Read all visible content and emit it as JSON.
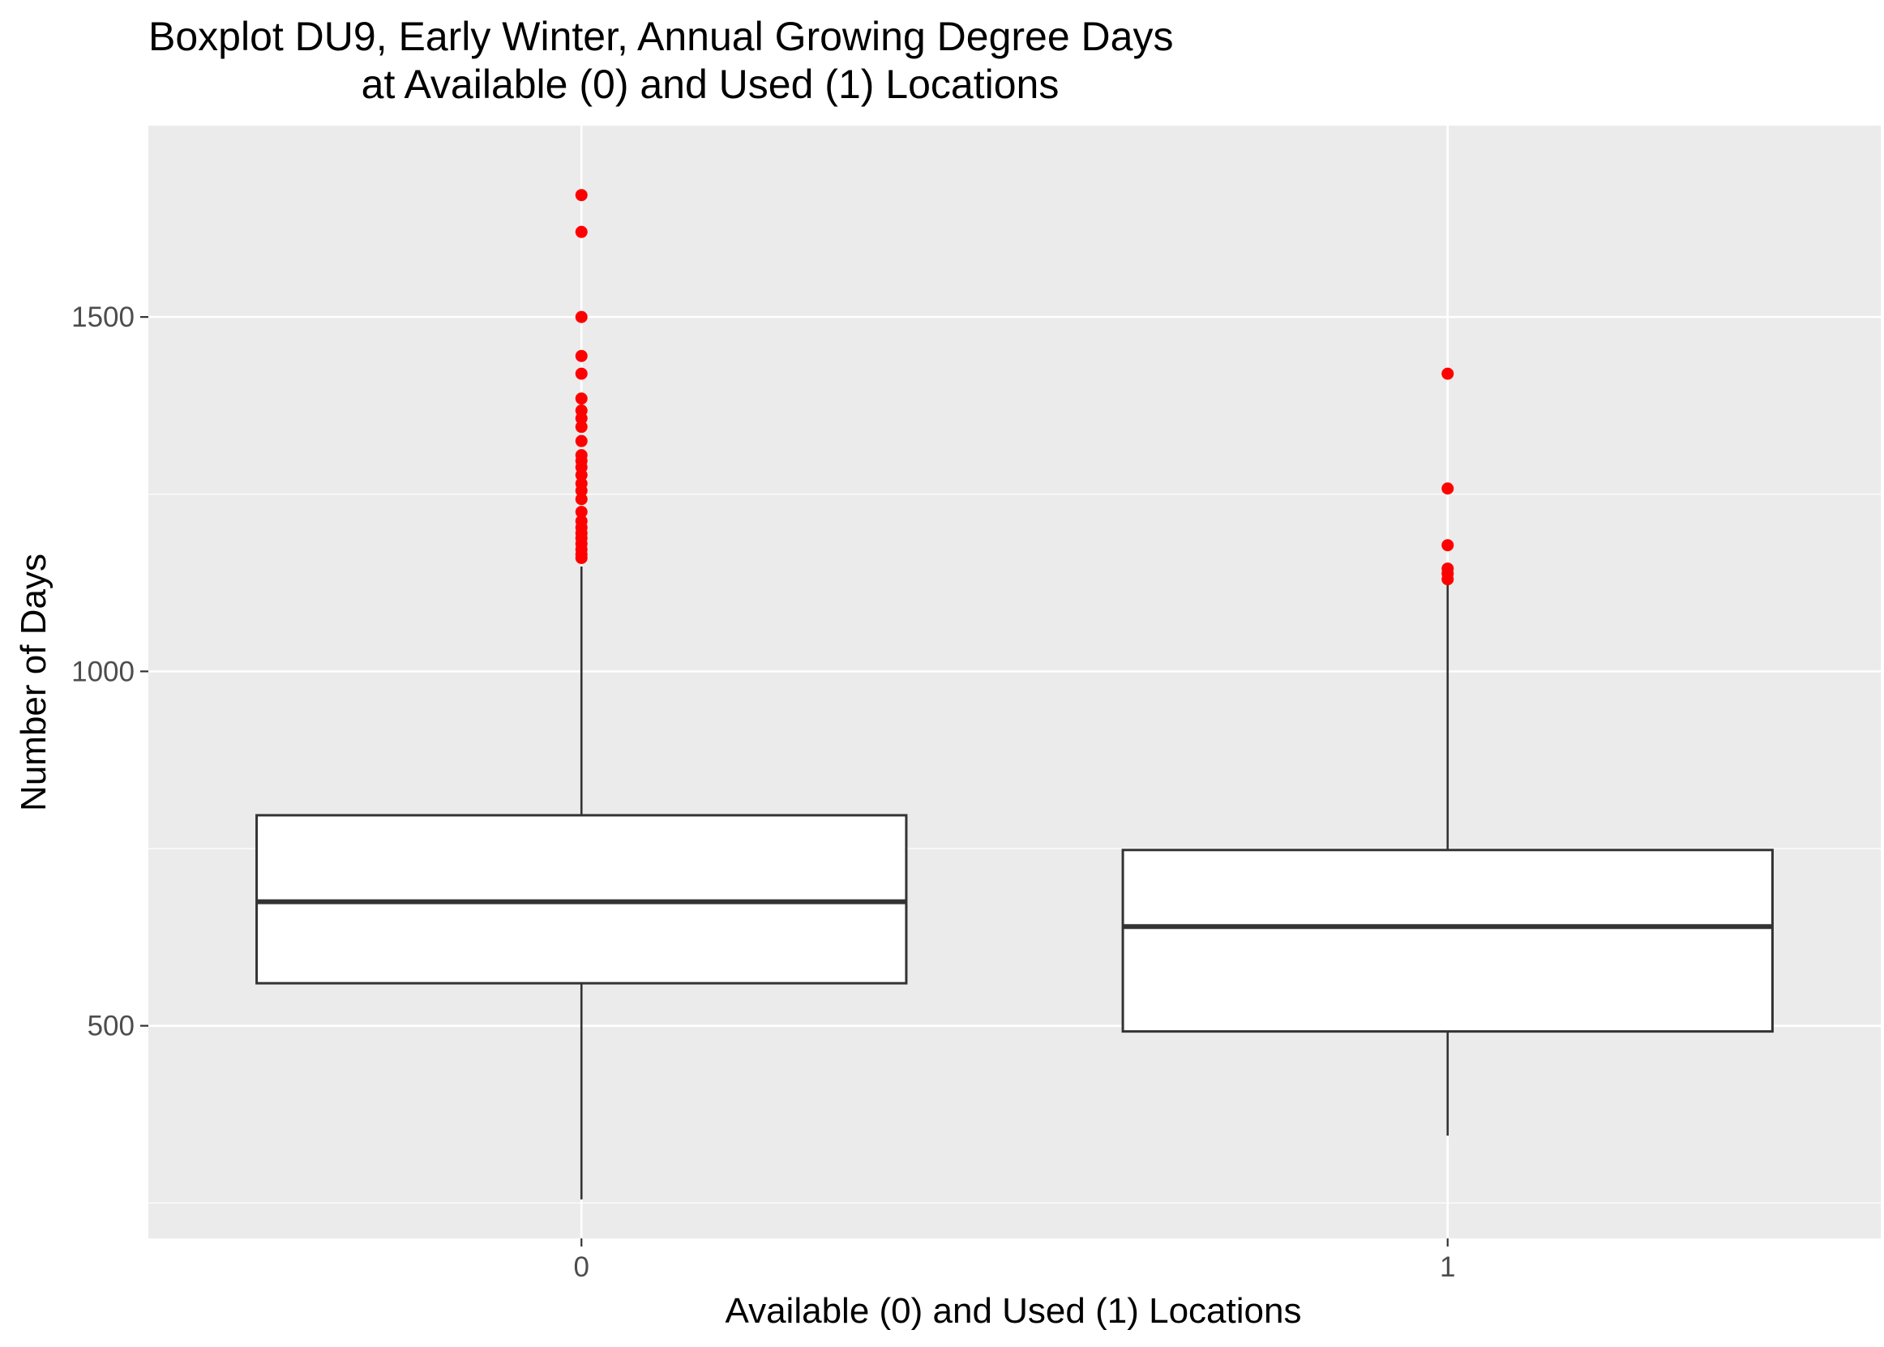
{
  "chart_data": {
    "type": "boxplot",
    "title": "Boxplot DU9, Early Winter, Annual Growing Degree Days",
    "subtitle": "at Available (0) and Used (1) Locations",
    "xlabel": "Available (0) and Used (1) Locations",
    "ylabel": "Number of Days",
    "categories": [
      "0",
      "1"
    ],
    "y_ticks": [
      500,
      1000,
      1500
    ],
    "ylim": [
      200,
      1770
    ],
    "grid": true,
    "colors": {
      "panel_background": "#ebebeb",
      "grid": "#ffffff",
      "box_fill": "#ffffff",
      "box_line": "#333333",
      "outlier": "#ff0000"
    },
    "series": [
      {
        "category": "0",
        "min": 255,
        "q1": 560,
        "median": 675,
        "q3": 797,
        "max": 1148,
        "outliers": [
          1160,
          1165,
          1172,
          1180,
          1188,
          1195,
          1203,
          1212,
          1225,
          1243,
          1255,
          1265,
          1277,
          1288,
          1297,
          1305,
          1325,
          1345,
          1357,
          1368,
          1385,
          1420,
          1445,
          1500,
          1620,
          1672
        ]
      },
      {
        "category": "1",
        "min": 345,
        "q1": 492,
        "median": 640,
        "q3": 748,
        "max": 1125,
        "outliers": [
          1130,
          1138,
          1145,
          1178,
          1258,
          1420
        ]
      }
    ]
  }
}
